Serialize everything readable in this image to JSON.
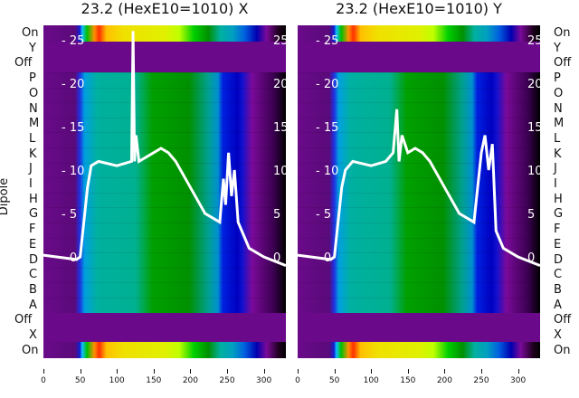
{
  "titles": [
    "23.2 (HexE10=1010) X",
    "23.2 (HexE10=1010) Y"
  ],
  "ylabel": "Dipole",
  "rows": [
    "On",
    "Y",
    "Off",
    "P",
    "O",
    "N",
    "M",
    "L",
    "K",
    "J",
    "I",
    "H",
    "G",
    "F",
    "E",
    "D",
    "C",
    "B",
    "A",
    "Off",
    "X",
    "On"
  ],
  "colors": {
    "purple": "#6a0a8a",
    "line": "#ffffff"
  },
  "chart_data": [
    {
      "type": "heatmap+line",
      "title": "23.2 (HexE10=1010) X",
      "xlim": [
        0,
        330
      ],
      "xticks": [
        "0",
        "50",
        "100",
        "150",
        "200",
        "250",
        "300"
      ],
      "inner_ylim": [
        -2,
        27
      ],
      "inner_yticks": [
        "0",
        "5",
        "10",
        "15",
        "20",
        "25"
      ],
      "line": {
        "x": [
          0,
          45,
          50,
          55,
          60,
          65,
          75,
          100,
          120,
          122,
          124,
          126,
          130,
          150,
          160,
          170,
          180,
          200,
          220,
          240,
          245,
          248,
          252,
          256,
          260,
          265,
          270,
          280,
          300,
          330
        ],
        "y": [
          0.2,
          -0.3,
          0,
          4,
          8,
          10.5,
          11,
          10.5,
          11,
          26,
          11,
          14,
          11,
          12,
          12.5,
          12,
          11,
          8,
          5,
          4,
          9,
          6,
          12,
          7,
          10,
          4,
          3,
          1,
          0,
          -1
        ]
      }
    },
    {
      "type": "heatmap+line",
      "title": "23.2 (HexE10=1010) Y",
      "xlim": [
        0,
        330
      ],
      "xticks": [
        "0",
        "50",
        "100",
        "150",
        "200",
        "250",
        "300"
      ],
      "inner_ylim": [
        -2,
        27
      ],
      "inner_yticks": [
        "0",
        "5",
        "10",
        "15",
        "20",
        "25"
      ],
      "line": {
        "x": [
          0,
          45,
          50,
          55,
          60,
          65,
          75,
          100,
          120,
          125,
          130,
          135,
          138,
          142,
          150,
          160,
          170,
          180,
          200,
          220,
          240,
          250,
          255,
          260,
          265,
          270,
          280,
          300,
          330
        ],
        "y": [
          0.2,
          -0.3,
          0,
          4,
          8,
          10,
          11,
          10.5,
          11,
          11.5,
          12,
          17,
          11,
          14,
          12,
          12.5,
          12,
          11,
          8,
          5,
          4,
          12,
          14,
          10,
          13,
          3,
          1,
          0,
          -1
        ]
      }
    }
  ]
}
